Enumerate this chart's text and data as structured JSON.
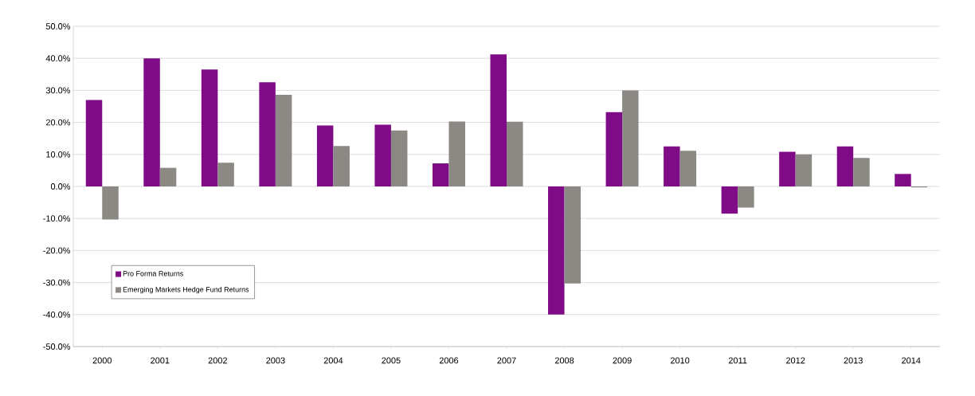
{
  "chart_data": {
    "type": "bar",
    "categories": [
      "2000",
      "2001",
      "2002",
      "2003",
      "2004",
      "2005",
      "2006",
      "2007",
      "2008",
      "2009",
      "2010",
      "2011",
      "2012",
      "2013",
      "2014"
    ],
    "series": [
      {
        "name": "Pro Forma Returns",
        "color": "#800b87",
        "values": [
          27.0,
          40.0,
          36.5,
          32.5,
          19.0,
          19.3,
          7.2,
          41.2,
          -40.0,
          23.2,
          12.5,
          -8.5,
          10.8,
          12.5,
          3.9
        ]
      },
      {
        "name": "Emerging Markets Hedge Fund Returns",
        "color": "#8c8883",
        "values": [
          -10.3,
          5.8,
          7.4,
          28.6,
          12.6,
          17.5,
          20.3,
          20.2,
          -30.3,
          30.0,
          11.1,
          -6.6,
          10.0,
          8.9,
          -0.3
        ]
      }
    ],
    "ylim": [
      -50,
      50
    ],
    "yticks": [
      {
        "value": -50,
        "label": "-50.0%"
      },
      {
        "value": -40,
        "label": "-40.0%"
      },
      {
        "value": -30,
        "label": "-30.0%"
      },
      {
        "value": -20,
        "label": "-20.0%"
      },
      {
        "value": -10,
        "label": "-10.0%"
      },
      {
        "value": 0,
        "label": "0.0%"
      },
      {
        "value": 10,
        "label": "10.0%"
      },
      {
        "value": 20,
        "label": "20.0%"
      },
      {
        "value": 30,
        "label": "30.0%"
      },
      {
        "value": 40,
        "label": "40.0%"
      },
      {
        "value": 50,
        "label": "50.0%"
      }
    ],
    "grid": "y",
    "legend": "bottom left"
  }
}
